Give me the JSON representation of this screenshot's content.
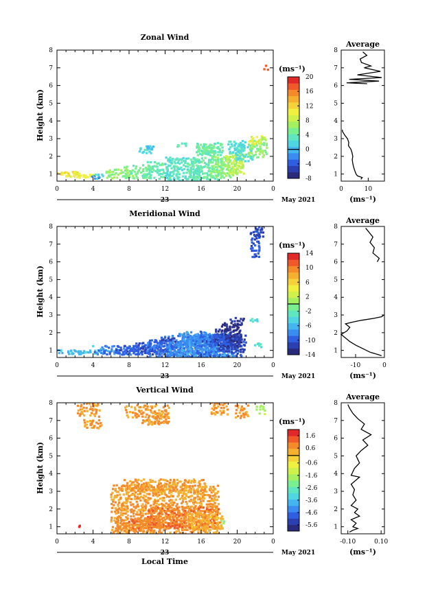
{
  "chart_data": [
    {
      "type": "heatmap",
      "title": "Zonal Wind",
      "ylabel": "Height (km)",
      "xlim": [
        0,
        24
      ],
      "ylim": [
        0.6,
        8
      ],
      "x_ticks": [
        "0",
        "4",
        "8",
        "12",
        "16",
        "20",
        "0"
      ],
      "y_ticks": [
        "1",
        "2",
        "3",
        "4",
        "5",
        "6",
        "7",
        "8"
      ],
      "date_label": "23",
      "month_label": "May 2021",
      "colorbar": {
        "unit": "(ms⁻¹)",
        "ticks": [
          "-8",
          "-4",
          "0",
          "4",
          "8",
          "12",
          "16",
          "20"
        ],
        "min": -8,
        "max": 20
      },
      "average": {
        "title": "Average",
        "xlabel": "(ms⁻¹)",
        "x_ticks": [
          "0",
          "10"
        ],
        "xlim": [
          0,
          16
        ],
        "profile": [
          [
            7.3,
            0.7
          ],
          [
            7.8,
            0.8
          ],
          [
            6.0,
            0.9
          ],
          [
            5.5,
            1.0
          ],
          [
            5.0,
            1.2
          ],
          [
            4.6,
            1.4
          ],
          [
            4.3,
            1.6
          ],
          [
            4.1,
            1.8
          ],
          [
            4.3,
            2.0
          ],
          [
            4.0,
            2.2
          ],
          [
            3.6,
            2.4
          ],
          [
            2.7,
            2.6
          ],
          [
            2.8,
            2.8
          ],
          [
            2.3,
            3.0
          ],
          [
            1.3,
            3.2
          ],
          [
            0.5,
            3.4
          ],
          [
            0.4,
            3.5
          ],
          [
            9.6,
            6.1
          ],
          [
            2.0,
            6.15
          ],
          [
            14.0,
            6.25
          ],
          [
            3.0,
            6.35
          ],
          [
            15.0,
            6.45
          ],
          [
            6.0,
            6.6
          ],
          [
            14.5,
            6.8
          ],
          [
            8.5,
            7.0
          ],
          [
            11.0,
            7.1
          ],
          [
            7.5,
            7.3
          ],
          [
            7.0,
            7.5
          ],
          [
            9.5,
            7.7
          ],
          [
            8.0,
            7.9
          ]
        ]
      },
      "cells": [
        [
          1.0,
          1.0,
          6,
          1,
          12
        ],
        [
          1.5,
          1.0,
          4,
          1,
          11
        ],
        [
          2.5,
          0.9,
          6,
          1,
          10
        ],
        [
          0,
          0,
          0,
          0,
          0
        ],
        [
          4.4,
          0.85,
          2,
          1,
          -2
        ],
        [
          4.8,
          0.85,
          2,
          1,
          2
        ],
        [
          6.8,
          1.0,
          6,
          2,
          6
        ],
        [
          9.0,
          1.1,
          6,
          3,
          5
        ],
        [
          11.5,
          1.2,
          8,
          4,
          4
        ],
        [
          14.0,
          1.2,
          8,
          6,
          3
        ],
        [
          16.5,
          1.3,
          8,
          5,
          4
        ],
        [
          18.5,
          1.4,
          6,
          5,
          6
        ],
        [
          19.8,
          1.6,
          4,
          5,
          8
        ],
        [
          20.8,
          2.2,
          4,
          4,
          3
        ],
        [
          22.3,
          2.4,
          4,
          4,
          6
        ],
        [
          20.0,
          2.5,
          4,
          3,
          2
        ],
        [
          17.0,
          2.4,
          6,
          3,
          4
        ],
        [
          9.8,
          2.4,
          3,
          2,
          2
        ],
        [
          10.2,
          2.5,
          2,
          1,
          0
        ],
        [
          14.0,
          2.6,
          3,
          1,
          4
        ],
        [
          16.5,
          2.4,
          4,
          2,
          5
        ],
        [
          22.0,
          2.9,
          3,
          2,
          10
        ],
        [
          22.8,
          3.0,
          2,
          1,
          7
        ],
        [
          23.2,
          7.0,
          1,
          1,
          18
        ]
      ]
    },
    {
      "type": "heatmap",
      "title": "Meridional Wind",
      "ylabel": "Height (km)",
      "xlim": [
        0,
        24
      ],
      "ylim": [
        0.6,
        8
      ],
      "x_ticks": [
        "0",
        "4",
        "8",
        "12",
        "16",
        "20",
        "0"
      ],
      "y_ticks": [
        "1",
        "2",
        "3",
        "4",
        "5",
        "6",
        "7",
        "8"
      ],
      "date_label": "23",
      "month_label": "May 2021",
      "colorbar": {
        "unit": "(ms⁻¹)",
        "ticks": [
          "-14",
          "-10",
          "-6",
          "-2",
          "2",
          "6",
          "10",
          "14"
        ],
        "min": -14,
        "max": 14
      },
      "average": {
        "title": "Average",
        "xlabel": "(ms⁻¹)",
        "x_ticks": [
          "-10",
          "0"
        ],
        "xlim": [
          -15,
          0
        ],
        "profile": [
          [
            -1.0,
            0.7
          ],
          [
            -3.0,
            0.8
          ],
          [
            -5.0,
            0.9
          ],
          [
            -7.5,
            1.1
          ],
          [
            -10.0,
            1.3
          ],
          [
            -12.0,
            1.5
          ],
          [
            -13.5,
            1.7
          ],
          [
            -15.0,
            1.9
          ],
          [
            -13.0,
            2.1
          ],
          [
            -12.0,
            2.3
          ],
          [
            -13.5,
            2.5
          ],
          [
            -11.0,
            2.6
          ],
          [
            -8.0,
            2.7
          ],
          [
            -4.0,
            2.8
          ],
          [
            -1.0,
            2.9
          ],
          [
            -0.2,
            3.0
          ],
          [
            -2.5,
            6.0
          ],
          [
            -1.8,
            6.2
          ],
          [
            -4.0,
            6.5
          ],
          [
            -3.5,
            6.8
          ],
          [
            -5.0,
            7.1
          ],
          [
            -4.0,
            7.4
          ],
          [
            -5.5,
            7.7
          ],
          [
            -6.5,
            7.9
          ]
        ]
      },
      "cells": [
        [
          1.2,
          0.9,
          6,
          1,
          -5
        ],
        [
          2.5,
          0.9,
          5,
          1,
          -6
        ],
        [
          4.5,
          1.0,
          2,
          2,
          -4
        ],
        [
          5.5,
          0.9,
          6,
          1,
          -8
        ],
        [
          7.0,
          1.0,
          8,
          2,
          -9
        ],
        [
          9.0,
          1.0,
          10,
          2,
          -10
        ],
        [
          11.0,
          1.1,
          10,
          3,
          -10
        ],
        [
          13.0,
          1.1,
          12,
          4,
          -9
        ],
        [
          15.0,
          1.2,
          12,
          5,
          -8
        ],
        [
          16.5,
          1.2,
          12,
          6,
          -7
        ],
        [
          18.0,
          1.2,
          10,
          5,
          -9
        ],
        [
          19.5,
          1.4,
          6,
          4,
          -11
        ],
        [
          19.0,
          1.7,
          6,
          4,
          -12
        ],
        [
          17.5,
          1.6,
          6,
          3,
          -10
        ],
        [
          15.5,
          1.7,
          6,
          3,
          -8
        ],
        [
          19.3,
          2.3,
          4,
          2,
          -13
        ],
        [
          20.0,
          2.6,
          3,
          2,
          -12
        ],
        [
          21.8,
          2.7,
          2,
          1,
          -4
        ],
        [
          22.3,
          1.3,
          2,
          1,
          -3
        ],
        [
          22.0,
          7.0,
          2,
          6,
          -10
        ],
        [
          22.4,
          7.7,
          2,
          3,
          -11
        ],
        [
          12.5,
          1.6,
          4,
          1,
          -11
        ]
      ]
    },
    {
      "type": "heatmap",
      "title": "Vertical Wind",
      "xlabel": "Local Time",
      "ylabel": "Height (km)",
      "xlim": [
        0,
        24
      ],
      "ylim": [
        0.6,
        8
      ],
      "x_ticks": [
        "0",
        "4",
        "8",
        "12",
        "16",
        "20",
        "0"
      ],
      "y_ticks": [
        "1",
        "2",
        "3",
        "4",
        "5",
        "6",
        "7",
        "8"
      ],
      "date_label": "23",
      "month_label": "May 2021",
      "colorbar": {
        "unit": "(ms⁻¹)",
        "ticks": [
          "-5.6",
          "-4.6",
          "-3.6",
          "-2.6",
          "-1.6",
          "-0.6",
          "0.6",
          "1.6"
        ],
        "min": -6.1,
        "max": 2.1
      },
      "average": {
        "title": "Average",
        "xlabel": "(ms⁻¹)",
        "x_ticks": [
          "-0.10",
          "0.10"
        ],
        "xlim": [
          -0.14,
          0.12
        ],
        "profile": [
          [
            -0.09,
            0.7
          ],
          [
            -0.07,
            0.8
          ],
          [
            -0.04,
            0.9
          ],
          [
            -0.07,
            1.0
          ],
          [
            -0.05,
            1.2
          ],
          [
            -0.08,
            1.4
          ],
          [
            -0.03,
            1.6
          ],
          [
            -0.06,
            1.8
          ],
          [
            -0.04,
            2.0
          ],
          [
            -0.08,
            2.2
          ],
          [
            -0.05,
            2.5
          ],
          [
            -0.07,
            2.8
          ],
          [
            -0.06,
            3.1
          ],
          [
            -0.08,
            3.4
          ],
          [
            -0.03,
            3.8
          ],
          [
            -0.08,
            3.9
          ],
          [
            -0.06,
            4.3
          ],
          [
            -0.03,
            4.6
          ],
          [
            -0.05,
            5.0
          ],
          [
            -0.02,
            5.3
          ],
          [
            0.02,
            5.6
          ],
          [
            -0.01,
            5.9
          ],
          [
            0.04,
            6.2
          ],
          [
            -0.02,
            6.5
          ],
          [
            0.0,
            6.8
          ],
          [
            -0.04,
            7.1
          ],
          [
            -0.07,
            7.4
          ],
          [
            -0.09,
            7.7
          ],
          [
            -0.1,
            7.9
          ]
        ]
      },
      "cells": [
        [
          12.0,
          1.2,
          24,
          6,
          0.6
        ],
        [
          12.0,
          2.6,
          24,
          6,
          0.6
        ],
        [
          12.0,
          3.3,
          18,
          3,
          0.6
        ],
        [
          14.0,
          1.5,
          16,
          5,
          1.0
        ],
        [
          16.5,
          1.3,
          8,
          4,
          0.3
        ],
        [
          9.0,
          1.1,
          10,
          3,
          0.9
        ],
        [
          3.5,
          7.7,
          5,
          4,
          0.6
        ],
        [
          10.0,
          7.5,
          10,
          3,
          0.6
        ],
        [
          18.0,
          7.7,
          4,
          3,
          0.6
        ],
        [
          20.5,
          7.5,
          3,
          3,
          0.6
        ],
        [
          4.0,
          6.8,
          4,
          2,
          0.6
        ],
        [
          11.0,
          7.0,
          6,
          2,
          0.6
        ],
        [
          22.6,
          7.6,
          2,
          2,
          -1.5
        ],
        [
          18.5,
          1.3,
          1,
          1,
          -1.8
        ],
        [
          2.6,
          1.0,
          1,
          1,
          1.8
        ]
      ]
    }
  ]
}
